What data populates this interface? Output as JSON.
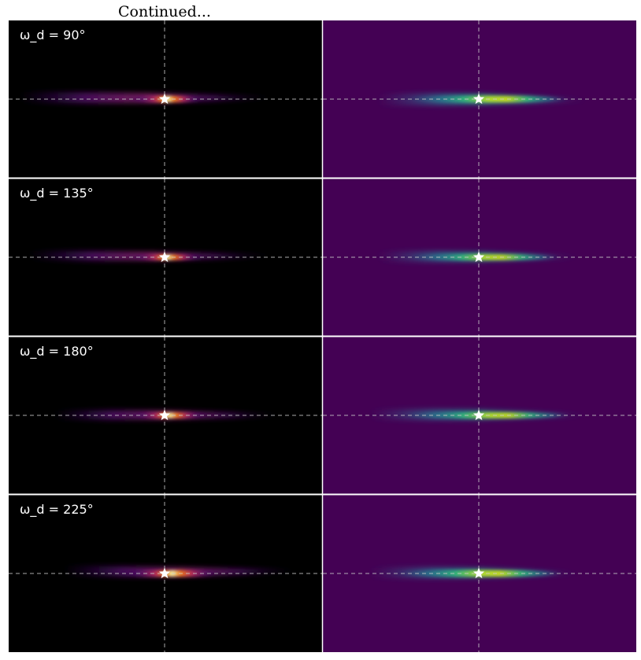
{
  "caption": "Continued...",
  "colors": {
    "left_panel_bg": "#000000",
    "right_panel_bg": "#440154",
    "crosshair": "#c8c8c8",
    "star": "#ffffff",
    "label_text": "#ffffff",
    "divider": "#ffffff"
  },
  "chart_data": {
    "type": "heatmap",
    "layout": "4 rows x 2 columns",
    "columns": [
      {
        "colormap": "inferno"
      },
      {
        "colormap": "viridis"
      }
    ],
    "rows": [
      {
        "label": "ω_d = 90°",
        "omega_d_deg": 90
      },
      {
        "label": "ω_d = 135°",
        "omega_d_deg": 135
      },
      {
        "label": "ω_d = 180°",
        "omega_d_deg": 180
      },
      {
        "label": "ω_d = 225°",
        "omega_d_deg": 225
      }
    ],
    "marker": {
      "shape": "star",
      "position": "center"
    },
    "crosshair": {
      "style": "dashed",
      "horizontal": true,
      "vertical": true
    },
    "axes_visible": false
  }
}
